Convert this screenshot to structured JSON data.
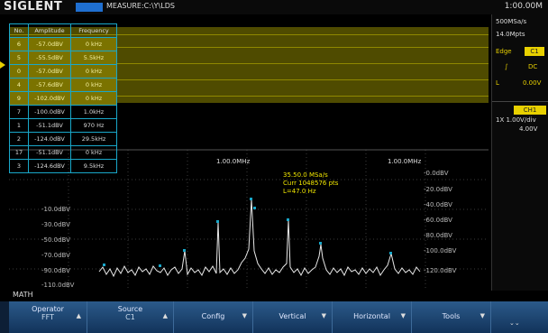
{
  "header": {
    "logo": "SIGLENT",
    "badge": "",
    "status": "MEASURE:C:\\Y\\LDS",
    "time": "1:00.00M"
  },
  "table": {
    "headers": [
      "No.",
      "Amplitude",
      "Frequency"
    ],
    "rows": [
      [
        "6",
        "-57.0dBV",
        "0 kHz"
      ],
      [
        "5",
        "-55.5dBV",
        "5.5kHz"
      ],
      [
        "0",
        "-57.0dBV",
        "0 kHz"
      ],
      [
        "4",
        "-57.6dBV",
        "0 kHz"
      ],
      [
        "9",
        "-102.0dBV",
        "0 kHz"
      ],
      [
        "7",
        "-100.0dBV",
        "1.0kHz"
      ],
      [
        "1",
        "-51.1dBV",
        "970 Hz"
      ],
      [
        "2",
        "-124.0dBV",
        "29.5kHz"
      ],
      [
        "17",
        "-51.1dBV",
        "0 kHz"
      ],
      [
        "3",
        "-124.6dBV",
        "9.5kHz"
      ]
    ]
  },
  "marker": {
    "line1": "35.50.0 MSa/s",
    "line2": "Curr 1048576 pts",
    "line3": "L=47.0 Hz"
  },
  "freq_labels": [
    "1.00.0MHz",
    "1.00.0MHz"
  ],
  "db_left": [
    "-10.0dBV",
    "-30.0dBV",
    "-50.0dBV",
    "-70.0dBV",
    "-90.0dBV",
    "-110.0dBV"
  ],
  "db_right": [
    "-0.0dBV",
    "-20.0dBV",
    "-40.0dBV",
    "-60.0dBV",
    "-80.0dBV",
    "-100.0dBV",
    "-120.0dBV"
  ],
  "right_panel": {
    "sample_rate": "500MSa/s",
    "memory": "14.0Mpts",
    "edge_label": "Edge",
    "channel_badge": "C1",
    "source_label": "DC",
    "level_label": "L",
    "level_value": "0.00V",
    "ch_label": "CH1",
    "ch_scale": "1X 1.00V/div",
    "ch_offset": "4.00V"
  },
  "math_label": "MATH",
  "menu": [
    {
      "label": "Operator",
      "value": "FFT"
    },
    {
      "label": "Source",
      "value": "C1"
    },
    {
      "label": "Config",
      "value": ""
    },
    {
      "label": "Vertical",
      "value": ""
    },
    {
      "label": "Horizontal",
      "value": ""
    },
    {
      "label": "Tools",
      "value": ""
    }
  ]
}
